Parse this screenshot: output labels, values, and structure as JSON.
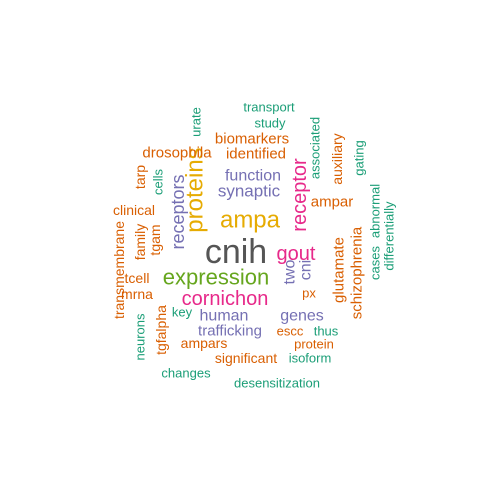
{
  "colors": {
    "gray": "#555555",
    "orange": "#e6ab02",
    "green": "#66a61e",
    "magenta": "#e7298a",
    "purple": "#7570b3",
    "rust": "#d95f02",
    "teal": "#1b9e77"
  },
  "words": [
    {
      "text": "cnih",
      "color": "gray"
    },
    {
      "text": "ampa",
      "color": "orange"
    },
    {
      "text": "proteins",
      "color": "orange"
    },
    {
      "text": "expression",
      "color": "green"
    },
    {
      "text": "cornichon",
      "color": "magenta"
    },
    {
      "text": "gout",
      "color": "magenta"
    },
    {
      "text": "receptor",
      "color": "magenta"
    },
    {
      "text": "receptors",
      "color": "purple"
    },
    {
      "text": "synaptic",
      "color": "purple"
    },
    {
      "text": "function",
      "color": "purple"
    },
    {
      "text": "human",
      "color": "purple"
    },
    {
      "text": "trafficking",
      "color": "purple"
    },
    {
      "text": "genes",
      "color": "purple"
    },
    {
      "text": "two",
      "color": "purple"
    },
    {
      "text": "cni",
      "color": "purple"
    },
    {
      "text": "biomarkers",
      "color": "rust"
    },
    {
      "text": "identified",
      "color": "rust"
    },
    {
      "text": "drosophila",
      "color": "rust"
    },
    {
      "text": "ampar",
      "color": "rust"
    },
    {
      "text": "glutamate",
      "color": "rust"
    },
    {
      "text": "schizophrenia",
      "color": "rust"
    },
    {
      "text": "auxiliary",
      "color": "rust"
    },
    {
      "text": "clinical",
      "color": "rust"
    },
    {
      "text": "tarp",
      "color": "rust"
    },
    {
      "text": "family",
      "color": "rust"
    },
    {
      "text": "tgam",
      "color": "rust"
    },
    {
      "text": "tcell",
      "color": "rust"
    },
    {
      "text": "mrna",
      "color": "rust"
    },
    {
      "text": "transmembrane",
      "color": "rust"
    },
    {
      "text": "tgfalpha",
      "color": "rust"
    },
    {
      "text": "ampars",
      "color": "rust"
    },
    {
      "text": "significant",
      "color": "rust"
    },
    {
      "text": "escc",
      "color": "rust"
    },
    {
      "text": "protein",
      "color": "rust"
    },
    {
      "text": "px",
      "color": "rust"
    },
    {
      "text": "transport",
      "color": "teal"
    },
    {
      "text": "study",
      "color": "teal"
    },
    {
      "text": "urate",
      "color": "teal"
    },
    {
      "text": "associated",
      "color": "teal"
    },
    {
      "text": "gating",
      "color": "teal"
    },
    {
      "text": "cells",
      "color": "teal"
    },
    {
      "text": "cases",
      "color": "teal"
    },
    {
      "text": "abnormal",
      "color": "teal"
    },
    {
      "text": "differentially",
      "color": "teal"
    },
    {
      "text": "key",
      "color": "teal"
    },
    {
      "text": "neurons",
      "color": "teal"
    },
    {
      "text": "thus",
      "color": "teal"
    },
    {
      "text": "isoform",
      "color": "teal"
    },
    {
      "text": "changes",
      "color": "teal"
    },
    {
      "text": "desensitization",
      "color": "teal"
    }
  ]
}
